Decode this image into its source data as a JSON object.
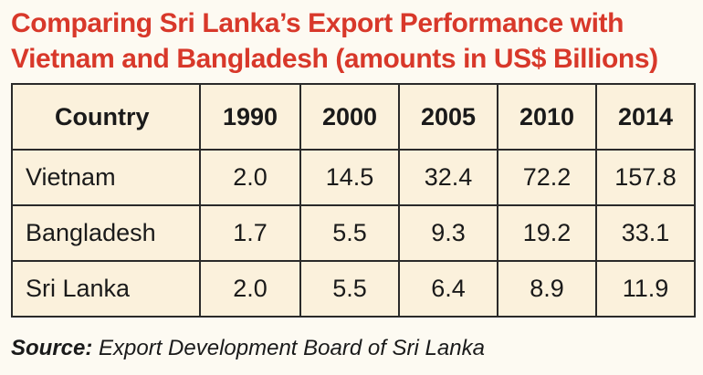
{
  "title": {
    "line1": "Comparing Sri Lanka’s Export Performance with",
    "line2": "Vietnam and Bangladesh (amounts in US$ Billions)"
  },
  "table": {
    "headers": [
      "Country",
      "1990",
      "2000",
      "2005",
      "2010",
      "2014"
    ],
    "rows": [
      [
        "Vietnam",
        "2.0",
        "14.5",
        "32.4",
        "72.2",
        "157.8"
      ],
      [
        "Bangladesh",
        "1.7",
        "5.5",
        "9.3",
        "19.2",
        "33.1"
      ],
      [
        "Sri Lanka",
        "2.0",
        "5.5",
        "6.4",
        "8.9",
        "11.9"
      ]
    ]
  },
  "source": {
    "label": "Source:",
    "text": " Export Development Board of Sri Lanka"
  },
  "colors": {
    "title": "#d8382a",
    "table_background": "#fbf1dc",
    "border": "#2a2a2a"
  }
}
